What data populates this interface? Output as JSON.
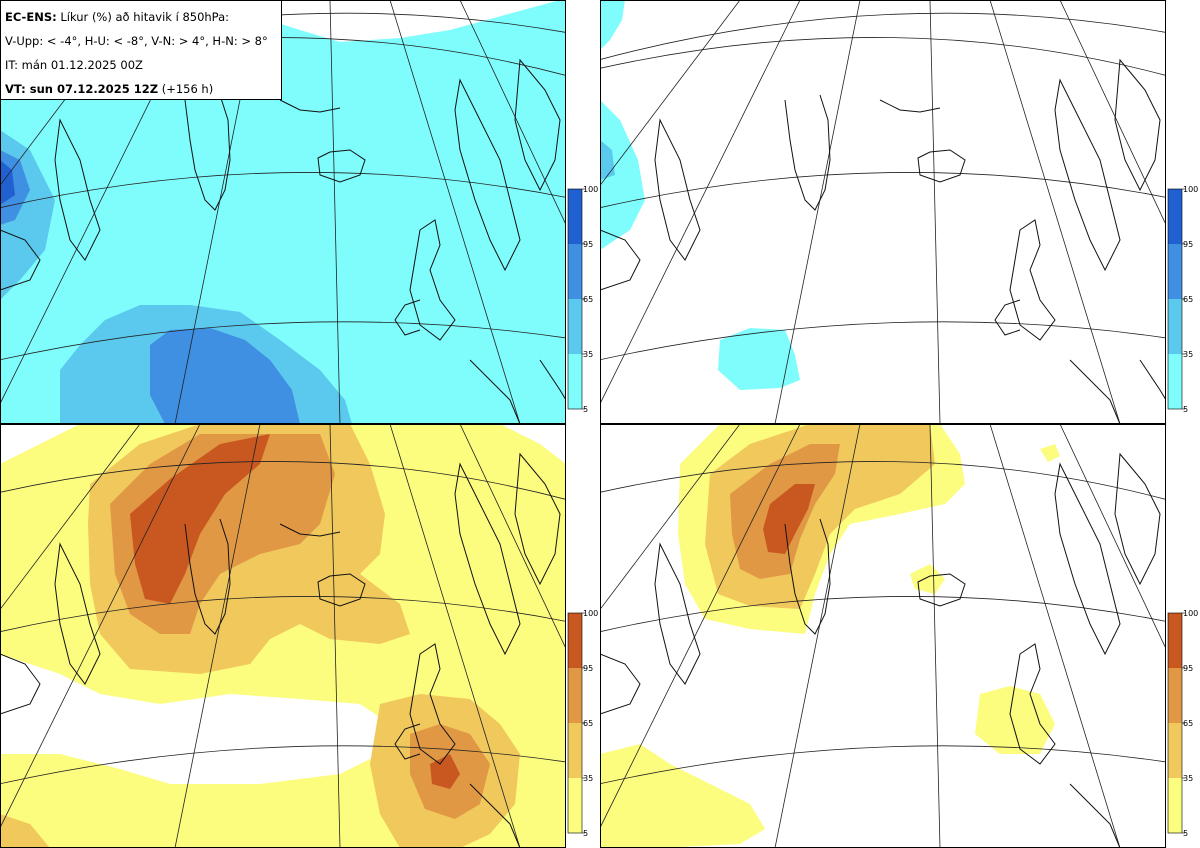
{
  "header": {
    "line1_bold": "EC-ENS:",
    "line1_rest": " Líkur (%) að hitavik í 850hPa:",
    "line2": "V-Upp: < -4°, H-U: < -8°, V-N: > 4°, H-N: > 8°",
    "line3": "IT: mán 01.12.2025 00Z",
    "line4_bold": "VT: sun 07.12.2025 12Z",
    "line4_rest": " (+156 h)"
  },
  "colorbar": {
    "labels": [
      "100",
      "95",
      "65",
      "35",
      "5"
    ],
    "cold_colors": [
      "#7ffcfc",
      "#5bc8ee",
      "#3f8fe2",
      "#2160d0"
    ],
    "warm_colors": [
      "#fcfc7f",
      "#f0c85c",
      "#e09844",
      "#c85820"
    ]
  },
  "panels": [
    {
      "key": "v-upp",
      "scheme": "cold"
    },
    {
      "key": "h-u",
      "scheme": "cold"
    },
    {
      "key": "v-n",
      "scheme": "warm"
    },
    {
      "key": "h-n",
      "scheme": "warm"
    }
  ]
}
